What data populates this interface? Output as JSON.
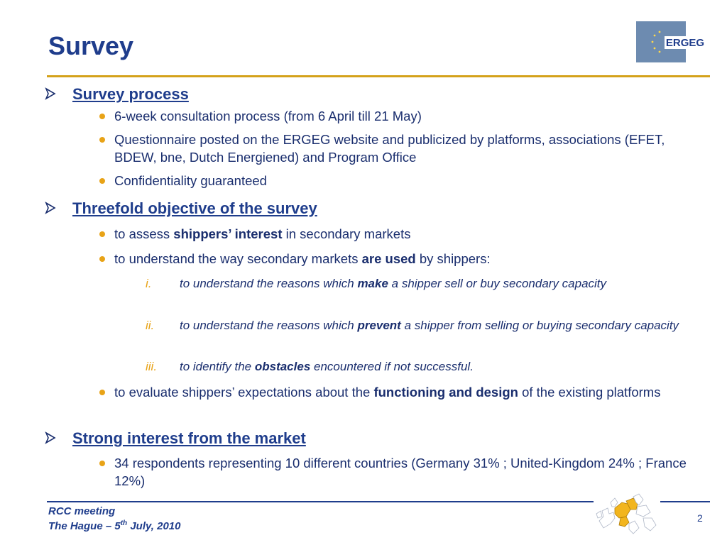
{
  "slide": {
    "title": "Survey",
    "logo_text": "ERGEG"
  },
  "sections": [
    {
      "title": "Survey process",
      "bullets": [
        [
          "6-week consultation process (from 6 April till 21 May)"
        ],
        [
          "Questionnaire posted on the ERGEG website and publicized by platforms, associations (EFET, BDEW, bne, Dutch Energiened) and Program Office"
        ],
        [
          "Confidentiality guaranteed"
        ]
      ]
    },
    {
      "title": "Threefold objective of the survey",
      "bullets": [
        [
          "to assess ",
          "shippers’ interest",
          " in secondary markets"
        ],
        [
          "to understand the way secondary markets ",
          "are used",
          " by shippers:"
        ],
        [
          "to evaluate shippers’ expectations about the ",
          "functioning and design",
          " of the existing platforms"
        ]
      ],
      "subitems": [
        {
          "num": "i.",
          "parts": [
            "to understand the reasons which ",
            "make",
            " a shipper sell or buy secondary capacity"
          ]
        },
        {
          "num": "ii.",
          "parts": [
            "to understand the reasons which ",
            "prevent",
            " a shipper from selling or buying secondary capacity"
          ]
        },
        {
          "num": "iii.",
          "parts": [
            "to identify the ",
            "obstacles",
            " encountered if not successful."
          ]
        }
      ]
    },
    {
      "title": "Strong interest from the market",
      "bullets": [
        [
          "34 respondents representing 10 different countries (Germany 31% ; United-Kingdom 24% ; France 12%)"
        ]
      ]
    }
  ],
  "footer": {
    "line1": "RCC meeting",
    "line2_pre": "The Hague – 5",
    "line2_sup": "th",
    "line2_post": " July, 2010",
    "page": "2"
  },
  "colors": {
    "title": "#1f3d8c",
    "body": "#1a2e6e",
    "bullet": "#e8a317",
    "rule": "#d4a21a",
    "logo_bg": "#6d8bb0"
  }
}
